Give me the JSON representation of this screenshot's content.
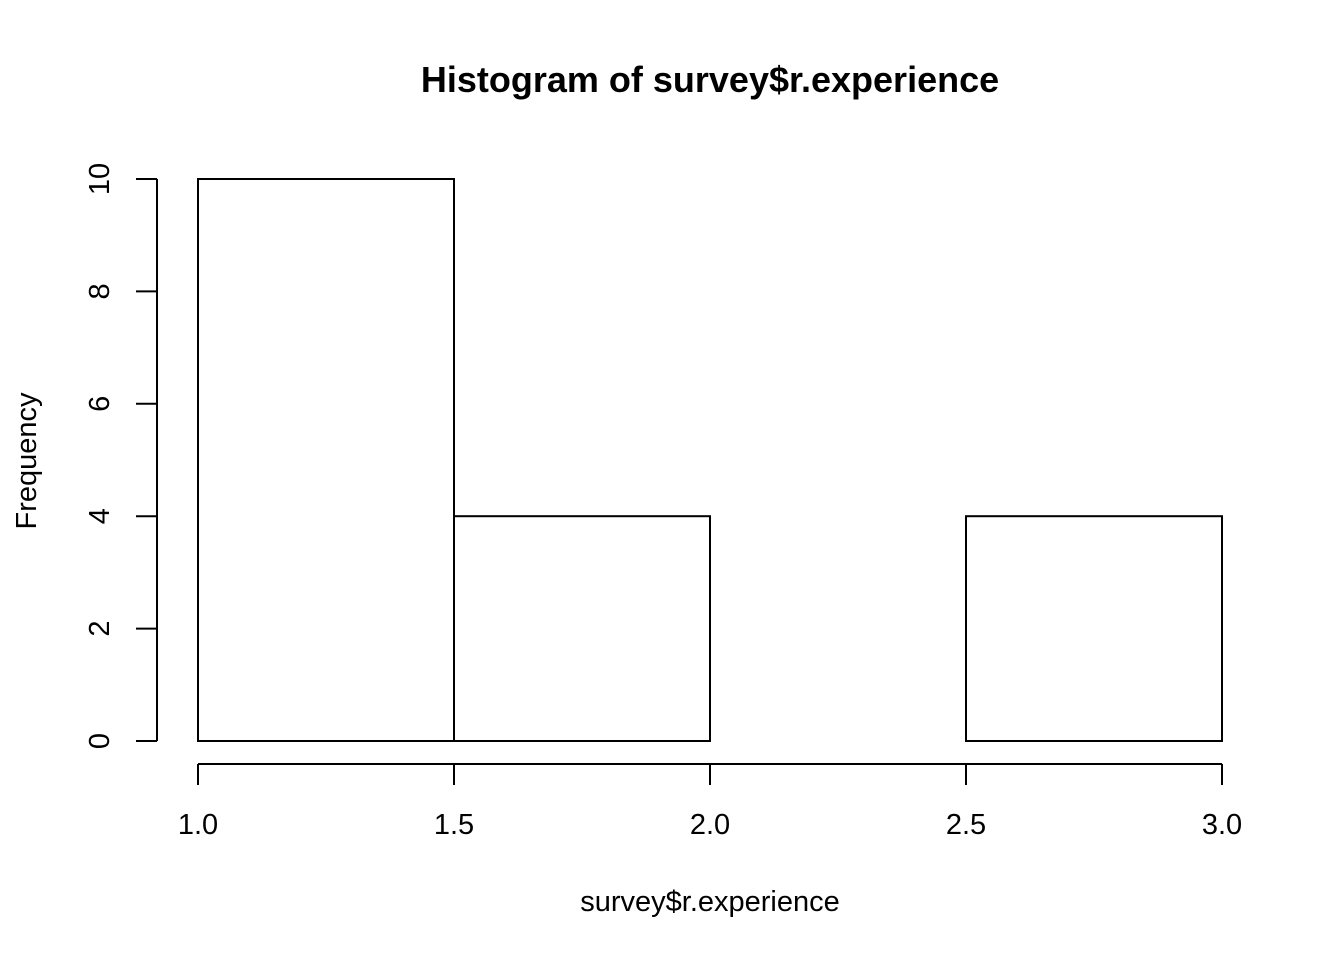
{
  "chart_data": {
    "type": "bar",
    "title": "Histogram of survey$r.experience",
    "xlabel": "survey$r.experience",
    "ylabel": "Frequency",
    "bins": [
      {
        "start": 1.0,
        "end": 1.5,
        "count": 10
      },
      {
        "start": 1.5,
        "end": 2.0,
        "count": 4
      },
      {
        "start": 2.0,
        "end": 2.5,
        "count": 0
      },
      {
        "start": 2.5,
        "end": 3.0,
        "count": 4
      }
    ],
    "xlim": [
      1.0,
      3.0
    ],
    "ylim": [
      0,
      10
    ],
    "x_ticks": [
      "1.0",
      "1.5",
      "2.0",
      "2.5",
      "3.0"
    ],
    "y_ticks": [
      "0",
      "2",
      "4",
      "6",
      "8",
      "10"
    ],
    "grid": false,
    "colors": {
      "bar_fill": "#ffffff",
      "bar_stroke": "#000000",
      "background": "#ffffff"
    }
  }
}
